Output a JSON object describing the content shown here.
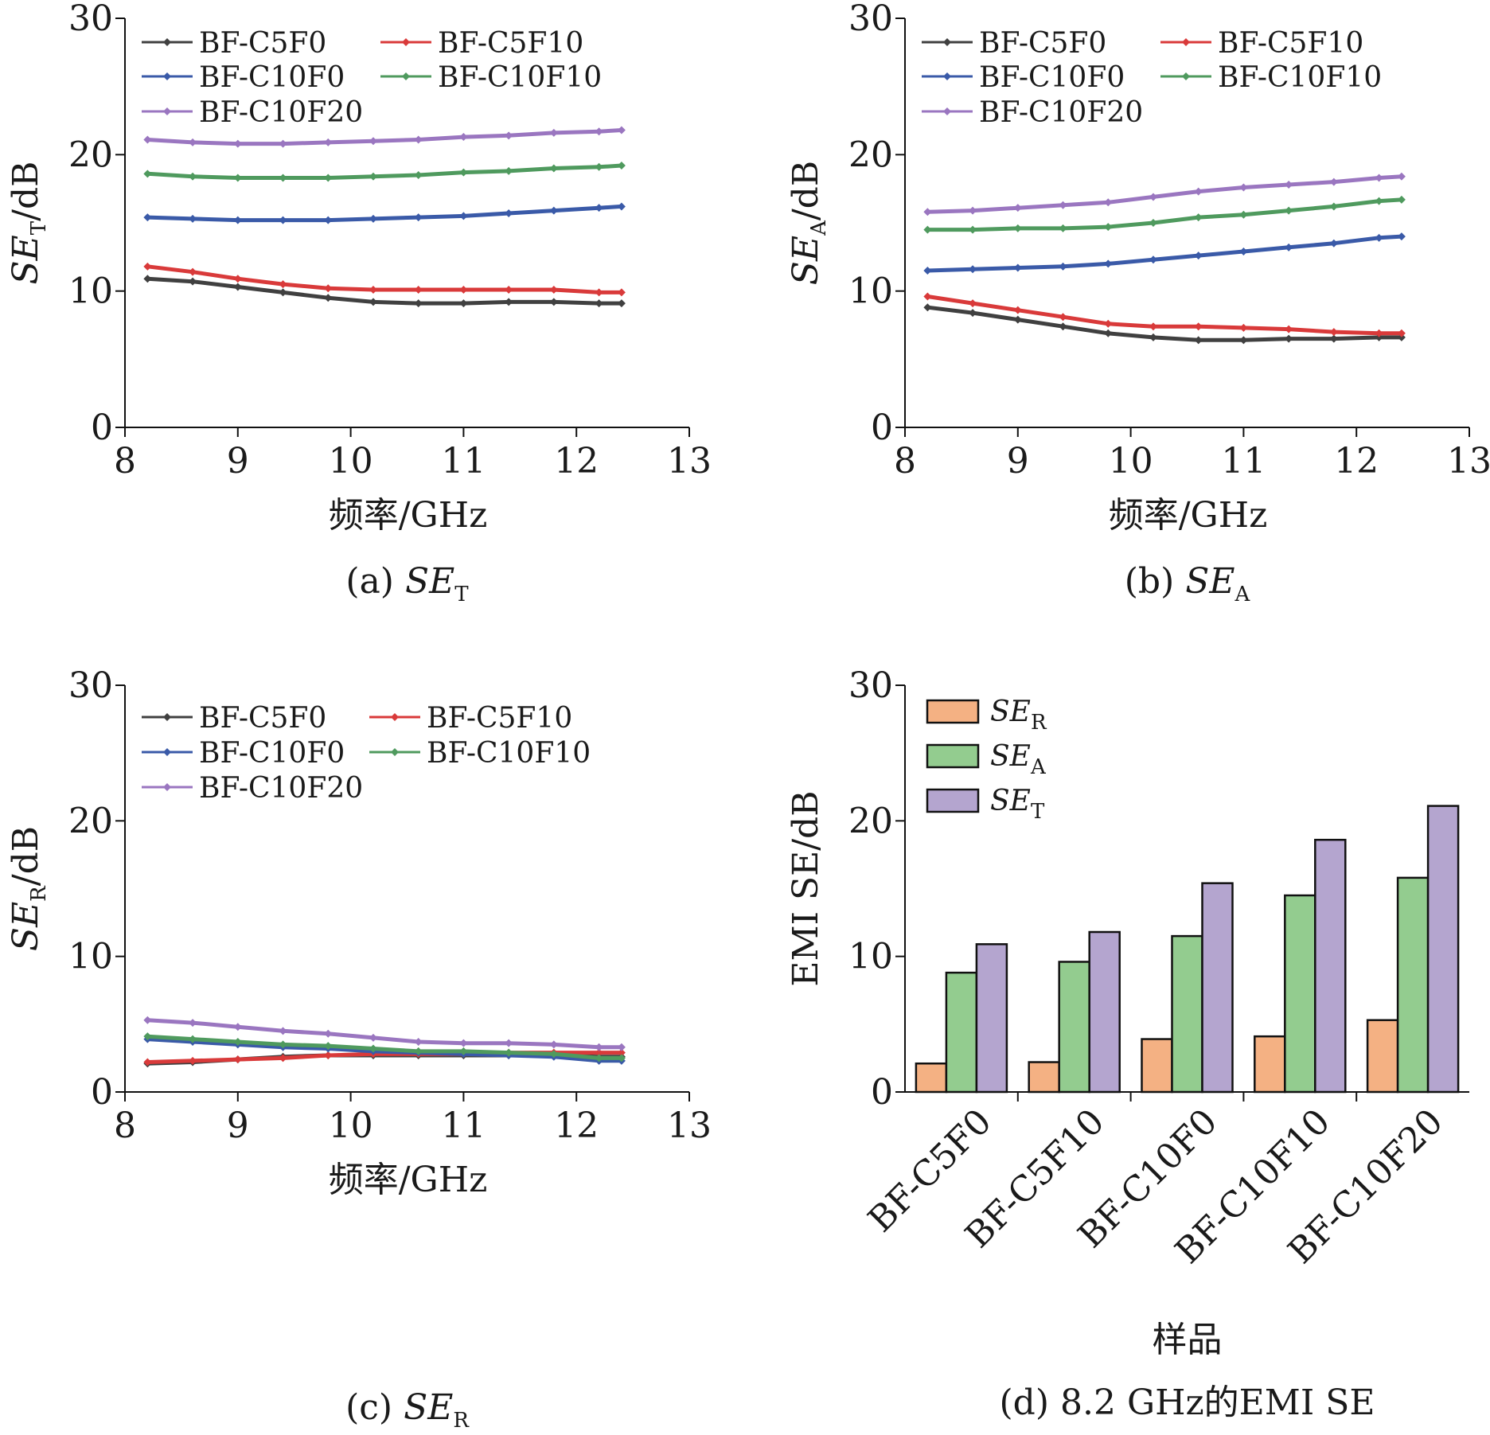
{
  "colors": {
    "BF-C5F0": "#404040",
    "BF-C5F10": "#d93a3a",
    "BF-C10F0": "#3a5aa8",
    "BF-C10F10": "#4f9a5e",
    "BF-C10F20": "#9a76c0",
    "SE_R": "#f4b183",
    "SE_A": "#93cc8f",
    "SE_T": "#b4a5cf"
  },
  "chart_data": [
    {
      "type": "line",
      "panel": "a",
      "caption_prefix": "(a) ",
      "caption_main": "SE",
      "caption_sub": "T",
      "xlabel": "频率/GHz",
      "ylabel_main": "SE",
      "ylabel_sub": "T",
      "ylabel_suffix": "/dB",
      "xlim": [
        8,
        13
      ],
      "ylim": [
        0,
        30
      ],
      "xticks": [
        "8",
        "9",
        "10",
        "11",
        "12",
        "13"
      ],
      "yticks": [
        "0",
        "10",
        "20",
        "30"
      ],
      "legend": "top-left",
      "x": [
        8.2,
        8.6,
        9.0,
        9.4,
        9.8,
        10.2,
        10.6,
        11.0,
        11.4,
        11.8,
        12.2,
        12.4
      ],
      "series": [
        {
          "name": "BF-C5F0",
          "values": [
            10.9,
            10.7,
            10.3,
            9.9,
            9.5,
            9.2,
            9.1,
            9.1,
            9.2,
            9.2,
            9.1,
            9.1
          ]
        },
        {
          "name": "BF-C5F10",
          "values": [
            11.8,
            11.4,
            10.9,
            10.5,
            10.2,
            10.1,
            10.1,
            10.1,
            10.1,
            10.1,
            9.9,
            9.9
          ]
        },
        {
          "name": "BF-C10F0",
          "values": [
            15.4,
            15.3,
            15.2,
            15.2,
            15.2,
            15.3,
            15.4,
            15.5,
            15.7,
            15.9,
            16.1,
            16.2
          ]
        },
        {
          "name": "BF-C10F10",
          "values": [
            18.6,
            18.4,
            18.3,
            18.3,
            18.3,
            18.4,
            18.5,
            18.7,
            18.8,
            19.0,
            19.1,
            19.2
          ]
        },
        {
          "name": "BF-C10F20",
          "values": [
            21.1,
            20.9,
            20.8,
            20.8,
            20.9,
            21.0,
            21.1,
            21.3,
            21.4,
            21.6,
            21.7,
            21.8
          ]
        }
      ]
    },
    {
      "type": "line",
      "panel": "b",
      "caption_prefix": "(b) ",
      "caption_main": "SE",
      "caption_sub": "A",
      "xlabel": "频率/GHz",
      "ylabel_main": "SE",
      "ylabel_sub": "A",
      "ylabel_suffix": "/dB",
      "xlim": [
        8,
        13
      ],
      "ylim": [
        0,
        30
      ],
      "xticks": [
        "8",
        "9",
        "10",
        "11",
        "12",
        "13"
      ],
      "yticks": [
        "0",
        "10",
        "20",
        "30"
      ],
      "legend": "top-left",
      "x": [
        8.2,
        8.6,
        9.0,
        9.4,
        9.8,
        10.2,
        10.6,
        11.0,
        11.4,
        11.8,
        12.2,
        12.4
      ],
      "series": [
        {
          "name": "BF-C5F0",
          "values": [
            8.8,
            8.4,
            7.9,
            7.4,
            6.9,
            6.6,
            6.4,
            6.4,
            6.5,
            6.5,
            6.6,
            6.6
          ]
        },
        {
          "name": "BF-C5F10",
          "values": [
            9.6,
            9.1,
            8.6,
            8.1,
            7.6,
            7.4,
            7.4,
            7.3,
            7.2,
            7.0,
            6.9,
            6.9
          ]
        },
        {
          "name": "BF-C10F0",
          "values": [
            11.5,
            11.6,
            11.7,
            11.8,
            12.0,
            12.3,
            12.6,
            12.9,
            13.2,
            13.5,
            13.9,
            14.0
          ]
        },
        {
          "name": "BF-C10F10",
          "values": [
            14.5,
            14.5,
            14.6,
            14.6,
            14.7,
            15.0,
            15.4,
            15.6,
            15.9,
            16.2,
            16.6,
            16.7
          ]
        },
        {
          "name": "BF-C10F20",
          "values": [
            15.8,
            15.9,
            16.1,
            16.3,
            16.5,
            16.9,
            17.3,
            17.6,
            17.8,
            18.0,
            18.3,
            18.4
          ]
        }
      ]
    },
    {
      "type": "line",
      "panel": "c",
      "caption_prefix": "(c) ",
      "caption_main": "SE",
      "caption_sub": "R",
      "xlabel": "频率/GHz",
      "ylabel_main": "SE",
      "ylabel_sub": "R",
      "ylabel_suffix": "/dB",
      "xlim": [
        8,
        13
      ],
      "ylim": [
        0,
        30
      ],
      "xticks": [
        "8",
        "9",
        "10",
        "11",
        "12",
        "13"
      ],
      "yticks": [
        "0",
        "10",
        "20",
        "30"
      ],
      "legend": "top-left",
      "x": [
        8.2,
        8.6,
        9.0,
        9.4,
        9.8,
        10.2,
        10.6,
        11.0,
        11.4,
        11.8,
        12.2,
        12.4
      ],
      "series": [
        {
          "name": "BF-C5F0",
          "values": [
            2.1,
            2.2,
            2.4,
            2.6,
            2.7,
            2.7,
            2.7,
            2.7,
            2.7,
            2.7,
            2.6,
            2.6
          ]
        },
        {
          "name": "BF-C5F10",
          "values": [
            2.2,
            2.3,
            2.4,
            2.5,
            2.7,
            2.8,
            2.8,
            2.8,
            2.9,
            2.9,
            2.9,
            2.9
          ]
        },
        {
          "name": "BF-C10F0",
          "values": [
            3.9,
            3.7,
            3.5,
            3.3,
            3.2,
            3.0,
            2.9,
            2.8,
            2.7,
            2.6,
            2.3,
            2.3
          ]
        },
        {
          "name": "BF-C10F10",
          "values": [
            4.1,
            3.9,
            3.7,
            3.5,
            3.4,
            3.2,
            3.0,
            3.0,
            2.9,
            2.8,
            2.5,
            2.5
          ]
        },
        {
          "name": "BF-C10F20",
          "values": [
            5.3,
            5.1,
            4.8,
            4.5,
            4.3,
            4.0,
            3.7,
            3.6,
            3.6,
            3.5,
            3.3,
            3.3
          ]
        }
      ]
    },
    {
      "type": "bar",
      "panel": "d",
      "caption": "(d) 8.2 GHz的EMI SE",
      "xlabel": "样品",
      "ylabel": "EMI SE/dB",
      "ylim": [
        0,
        30
      ],
      "yticks": [
        "0",
        "10",
        "20",
        "30"
      ],
      "legend": "top-left",
      "categories": [
        "BF-C5F0",
        "BF-C5F10",
        "BF-C10F0",
        "BF-C10F10",
        "BF-C10F20"
      ],
      "series": [
        {
          "name": "SE_R",
          "label_main": "SE",
          "label_sub": "R",
          "values": [
            2.1,
            2.2,
            3.9,
            4.1,
            5.3
          ]
        },
        {
          "name": "SE_A",
          "label_main": "SE",
          "label_sub": "A",
          "values": [
            8.8,
            9.6,
            11.5,
            14.5,
            15.8
          ]
        },
        {
          "name": "SE_T",
          "label_main": "SE",
          "label_sub": "T",
          "values": [
            10.9,
            11.8,
            15.4,
            18.6,
            21.1
          ]
        }
      ]
    }
  ]
}
